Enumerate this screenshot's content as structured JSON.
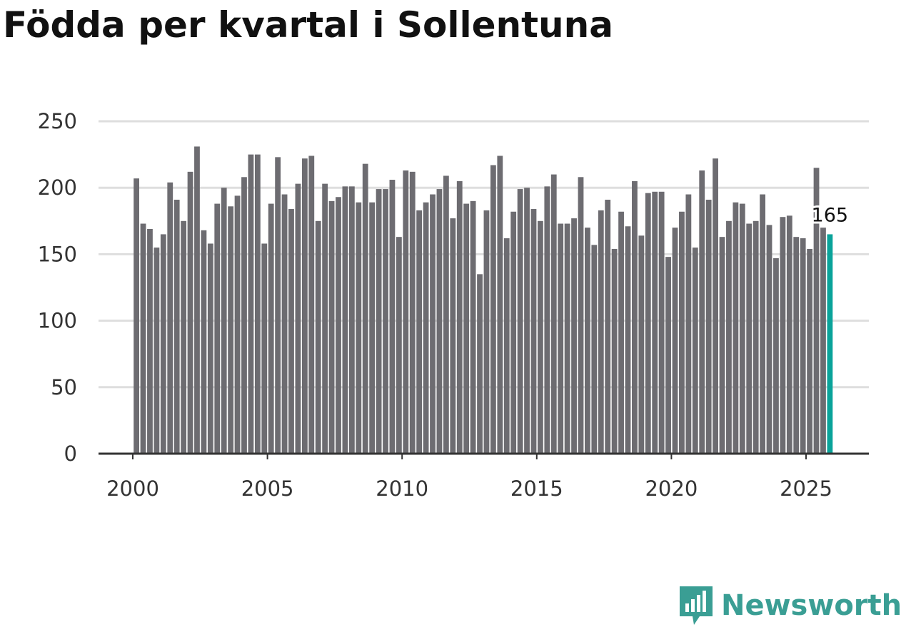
{
  "chart_data": {
    "type": "bar",
    "title": "Födda per kvartal i Sollentuna",
    "xlabel": "",
    "ylabel": "",
    "ylim": [
      0,
      250
    ],
    "yticks": [
      0,
      50,
      100,
      150,
      200,
      250
    ],
    "xticks": [
      "2000",
      "2005",
      "2010",
      "2015",
      "2020",
      "2025"
    ],
    "start_year": 2000,
    "grid": true,
    "bar_color": "#6d6c71",
    "highlight_color": "#0aa39a",
    "highlight_label": "165",
    "values": [
      207,
      173,
      169,
      155,
      165,
      204,
      191,
      175,
      212,
      231,
      168,
      158,
      188,
      200,
      186,
      194,
      208,
      225,
      225,
      158,
      188,
      223,
      195,
      184,
      203,
      222,
      224,
      175,
      203,
      190,
      193,
      201,
      201,
      189,
      218,
      189,
      199,
      199,
      206,
      163,
      213,
      212,
      183,
      189,
      195,
      199,
      209,
      177,
      205,
      188,
      190,
      135,
      183,
      217,
      224,
      162,
      182,
      199,
      200,
      184,
      175,
      201,
      210,
      173,
      173,
      177,
      208,
      170,
      157,
      183,
      191,
      154,
      182,
      171,
      205,
      164,
      196,
      197,
      197,
      148,
      170,
      182,
      195,
      155,
      213,
      191,
      222,
      163,
      175,
      189,
      188,
      173,
      175,
      195,
      172,
      147,
      178,
      179,
      163,
      162,
      154,
      215,
      170,
      165
    ]
  },
  "logo": {
    "text": "Newsworthy",
    "color": "#3a9e94"
  }
}
